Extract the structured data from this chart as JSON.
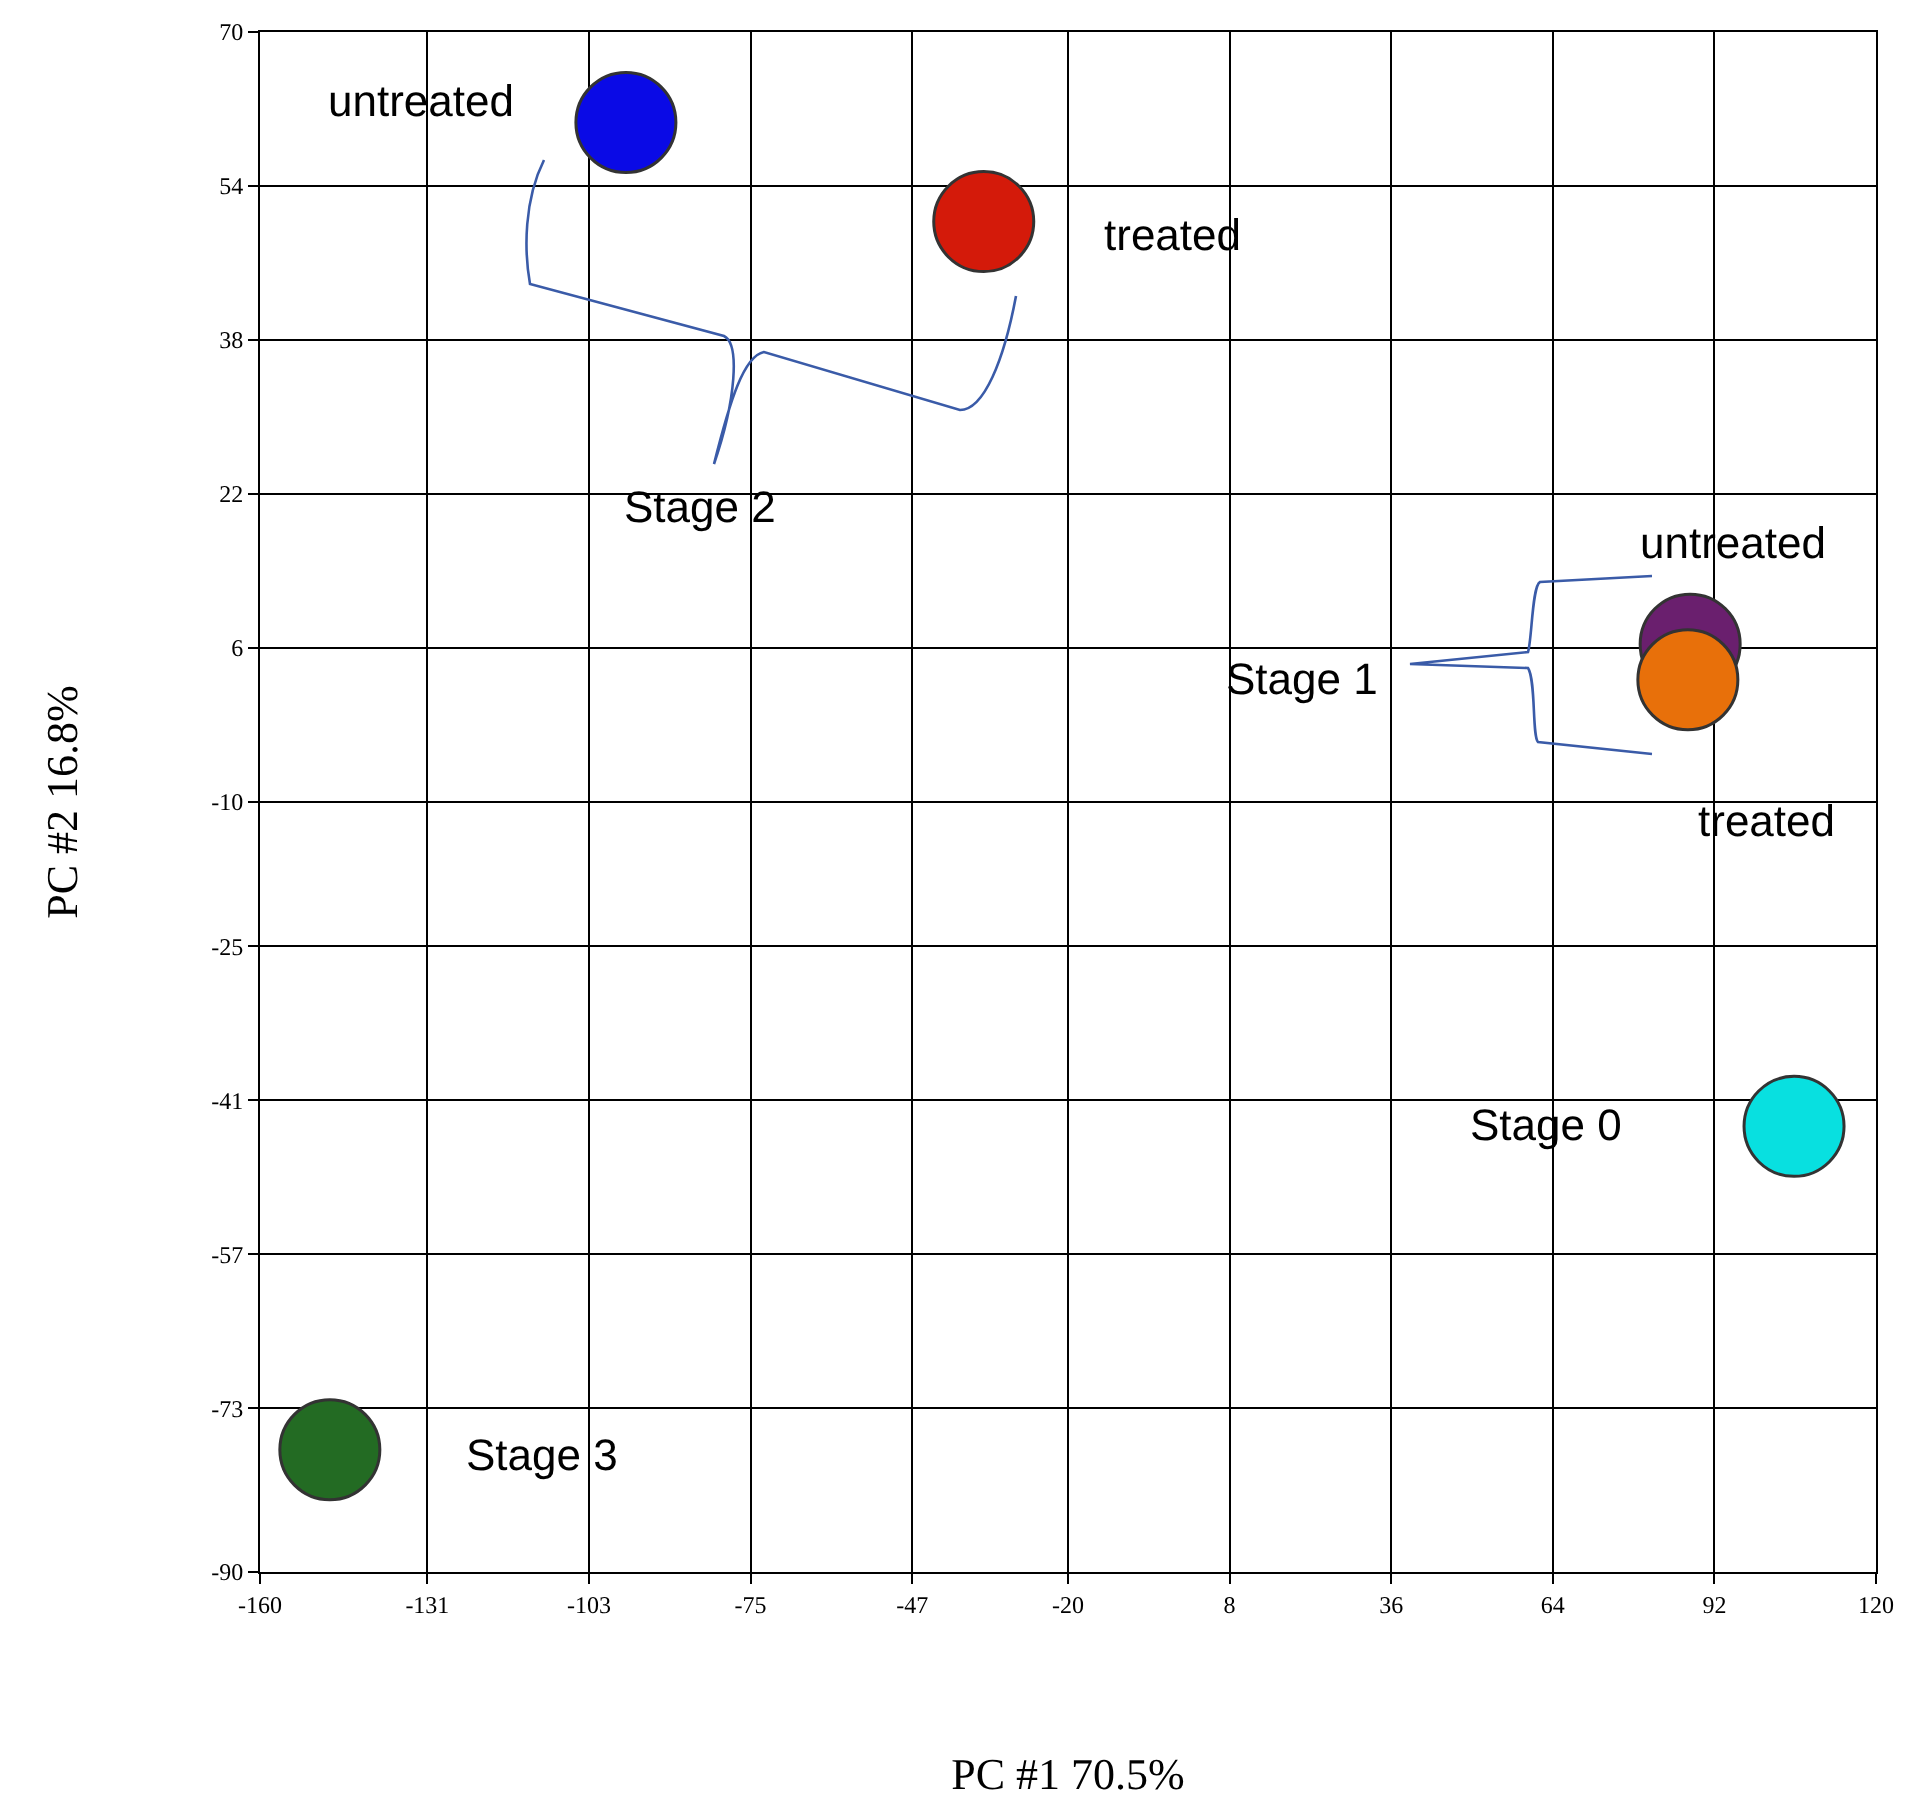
{
  "chart_data": {
    "type": "scatter",
    "xlabel": "PC #1 70.5%",
    "ylabel": "PC #2 16.8%",
    "x": [
      -96.6,
      -34.6,
      87.8,
      87.4,
      105.8,
      -147.9
    ],
    "values": [
      60.6,
      50.3,
      6.4,
      2.7,
      -43.7,
      -77.3
    ],
    "colors": [
      "#0a0ae6",
      "#d41a0a",
      "#6a1f6e",
      "#e8700a",
      "#08e0e0",
      "#236b23"
    ],
    "marker": "circle",
    "grid": true,
    "xlim": [
      -160,
      120
    ],
    "xticks": [
      -160,
      -131,
      -103,
      -75,
      -47,
      -20,
      8,
      36,
      64,
      92,
      120
    ],
    "ylim": [
      -90,
      70
    ],
    "yticks": [
      -90,
      -73,
      -57,
      -41,
      -25,
      -10,
      6,
      22,
      38,
      54,
      70
    ],
    "annotations": [
      "untreated",
      "treated",
      "Stage 2",
      "untreated",
      "Stage 1",
      "treated",
      "Stage 0",
      "Stage 3"
    ]
  }
}
